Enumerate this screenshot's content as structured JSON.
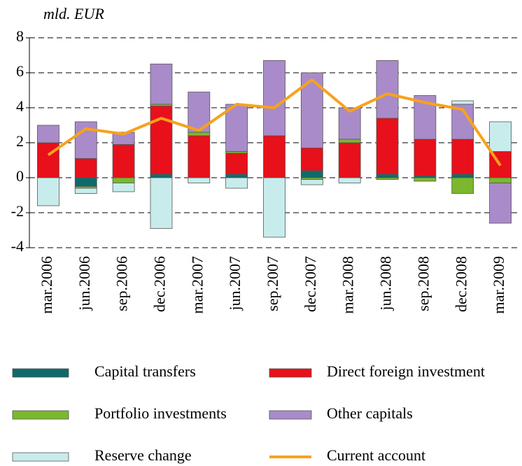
{
  "chart_data": {
    "type": "stacked-bar-line",
    "y_label": "mld. EUR",
    "categories": [
      "mar.2006",
      "jun.2006",
      "sep.2006",
      "dec.2006",
      "mar.2007",
      "jun.2007",
      "sep.2007",
      "dec.2007",
      "mar.2008",
      "jun.2008",
      "sep.2008",
      "dec.2008",
      "mar.2009"
    ],
    "series": [
      {
        "name": "Capital transfers",
        "color": "#0e6b6b",
        "type": "bar",
        "values": [
          0,
          -0.5,
          0,
          0.2,
          0,
          0.2,
          0,
          0.4,
          0,
          0.2,
          0.1,
          0.2,
          0
        ]
      },
      {
        "name": "Direct foreign investment",
        "color": "#e8101a",
        "type": "bar",
        "values": [
          2,
          1.1,
          1.9,
          3.9,
          2.4,
          1.2,
          2.4,
          1.3,
          2.0,
          3.2,
          2.1,
          2.0,
          1.5
        ]
      },
      {
        "name": "Portfolio investments",
        "color": "#7cb82e",
        "type": "bar",
        "values": [
          0,
          -0.1,
          -0.3,
          0.1,
          0.2,
          0.1,
          0,
          -0.1,
          0.2,
          -0.1,
          -0.2,
          -0.9,
          -0.3
        ]
      },
      {
        "name": "Other capitals",
        "color": "#a98bc9",
        "type": "bar",
        "values": [
          1.0,
          2.1,
          0.7,
          2.3,
          2.3,
          2.7,
          4.3,
          4.3,
          1.8,
          3.3,
          2.5,
          2.0,
          -2.3
        ]
      },
      {
        "name": "Reserve change",
        "color": "#c8ecec",
        "type": "bar",
        "values": [
          -1.6,
          -0.3,
          -0.5,
          -2.9,
          -0.3,
          -0.6,
          -3.4,
          -0.3,
          -0.3,
          0,
          0,
          0.2,
          1.7
        ]
      },
      {
        "name": "Current account",
        "color": "#f7a21b",
        "type": "line",
        "values": [
          1.3,
          2.8,
          2.5,
          3.4,
          2.7,
          4.2,
          4.0,
          5.6,
          3.8,
          4.8,
          4.3,
          3.9,
          0.7
        ]
      }
    ],
    "ylim": [
      -4,
      8
    ],
    "yticks": [
      -4,
      -2,
      0,
      2,
      4,
      6,
      8
    ],
    "grid": true
  }
}
